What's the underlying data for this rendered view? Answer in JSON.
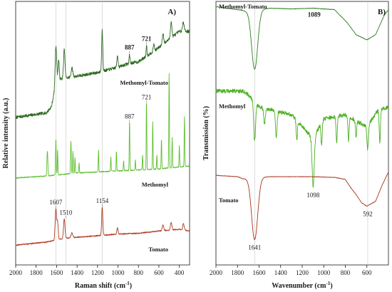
{
  "chart_data": [
    {
      "panel": "A)",
      "type": "line",
      "xlabel": "Raman shift (cm",
      "xlabel_sup": "-1",
      "ylabel": "Relative intensity (a.u.)",
      "xlim": [
        2000,
        300
      ],
      "xticks": [
        2000,
        1800,
        1600,
        1400,
        1200,
        1000,
        800,
        600,
        400
      ],
      "guide_lines": [
        1607,
        1510,
        1154
      ],
      "series": [
        {
          "name": "Methomyl-Tomato",
          "color": "#2e6b22",
          "offset": 0.56,
          "amp": 0.34,
          "baseline": {
            "x": [
              2000,
              1700,
              1650,
              1600,
              1400,
              1200,
              1000,
              900,
              800,
              600,
              400,
              300
            ],
            "y": [
              0.0,
              0.05,
              0.12,
              0.42,
              0.46,
              0.5,
              0.56,
              0.6,
              0.62,
              0.78,
              0.96,
              0.96
            ]
          },
          "peaks": [
            [
              1607,
              0.42,
              10
            ],
            [
              1580,
              0.22,
              8
            ],
            [
              1525,
              0.32,
              10
            ],
            [
              1450,
              0.1,
              12
            ],
            [
              1154,
              0.46,
              8
            ],
            [
              1005,
              0.14,
              8
            ],
            [
              887,
              0.1,
              6
            ],
            [
              721,
              0.12,
              6
            ],
            [
              650,
              0.08,
              8
            ],
            [
              560,
              0.12,
              10
            ],
            [
              480,
              0.18,
              10
            ],
            [
              360,
              0.1,
              12
            ]
          ],
          "noise": 0.035
        },
        {
          "name": "Methomyl",
          "color": "#5cbf2e",
          "offset": 0.33,
          "amp": 0.38,
          "baseline": {
            "x": [
              2000,
              1700,
              1400,
              1000,
              600,
              300
            ],
            "y": [
              0.0,
              0.02,
              0.05,
              0.07,
              0.09,
              0.12
            ]
          },
          "peaks": [
            [
              1690,
              0.25,
              6
            ],
            [
              1607,
              0.36,
              5
            ],
            [
              1590,
              0.25,
              4
            ],
            [
              1460,
              0.32,
              5
            ],
            [
              1440,
              0.22,
              4
            ],
            [
              1420,
              0.16,
              4
            ],
            [
              1380,
              0.1,
              4
            ],
            [
              1190,
              0.22,
              4
            ],
            [
              1070,
              0.14,
              4
            ],
            [
              1015,
              0.2,
              4
            ],
            [
              945,
              0.1,
              4
            ],
            [
              887,
              0.5,
              4
            ],
            [
              830,
              0.1,
              4
            ],
            [
              760,
              0.15,
              4
            ],
            [
              721,
              0.7,
              4
            ],
            [
              660,
              0.48,
              4
            ],
            [
              620,
              0.14,
              4
            ],
            [
              575,
              0.3,
              4
            ],
            [
              500,
              0.95,
              4
            ],
            [
              470,
              0.3,
              4
            ],
            [
              400,
              0.22,
              4
            ],
            [
              350,
              0.5,
              4
            ]
          ],
          "noise": 0.01
        },
        {
          "name": "Tomato",
          "color": "#b03c22",
          "offset": 0.075,
          "amp": 0.3,
          "baseline": {
            "x": [
              2000,
              1700,
              1500,
              1300,
              1000,
              800,
              600,
              400,
              300
            ],
            "y": [
              0.0,
              0.04,
              0.09,
              0.11,
              0.14,
              0.15,
              0.18,
              0.2,
              0.18
            ]
          },
          "peaks": [
            [
              1607,
              0.4,
              10
            ],
            [
              1590,
              0.22,
              8
            ],
            [
              1525,
              0.25,
              10
            ],
            [
              1450,
              0.06,
              12
            ],
            [
              1154,
              0.36,
              8
            ],
            [
              1005,
              0.08,
              8
            ],
            [
              560,
              0.07,
              10
            ],
            [
              480,
              0.1,
              10
            ],
            [
              360,
              0.08,
              10
            ]
          ],
          "noise": 0.015
        }
      ],
      "annotations": [
        {
          "text": "887",
          "x": 887,
          "series": 0,
          "bold": true
        },
        {
          "text": "721",
          "x": 721,
          "series": 0,
          "bold": true
        },
        {
          "text": "887",
          "x": 887,
          "series": 1,
          "bold": false
        },
        {
          "text": "721",
          "x": 721,
          "series": 1,
          "bold": false
        },
        {
          "text": "1607",
          "x": 1607,
          "series": 2,
          "bold": false
        },
        {
          "text": "1510",
          "x": 1510,
          "series": 2,
          "bold": false
        },
        {
          "text": "1154",
          "x": 1154,
          "series": 2,
          "bold": false
        }
      ]
    },
    {
      "panel": "B)",
      "type": "line",
      "xlabel": "Wavenumber (cm",
      "xlabel_sup": "-1",
      "ylabel": "Transmission (%)",
      "xlim": [
        2000,
        400
      ],
      "xticks": [
        2000,
        1800,
        1600,
        1400,
        1200,
        1000,
        800,
        600
      ],
      "guide_lines": [
        1641,
        592
      ],
      "series": [
        {
          "name": "Methomyl-Tomato",
          "color": "#2e7d22",
          "offset": 0.7,
          "amp": 0.28,
          "baseline": {
            "x": [
              2000,
              1900,
              1800,
              1720,
              1500,
              1300,
              1100,
              900,
              780,
              700,
              600,
              520,
              440,
              400
            ],
            "y": [
              1.0,
              0.98,
              0.96,
              0.94,
              0.98,
              0.97,
              0.98,
              0.96,
              0.78,
              0.62,
              0.55,
              0.62,
              0.88,
              0.96
            ]
          },
          "dips": [
            [
              1641,
              0.8,
              40
            ]
          ],
          "noise": 0.006
        },
        {
          "name": "Methomyl",
          "color": "#4caf22",
          "offset": 0.36,
          "amp": 0.3,
          "baseline": {
            "x": [
              2000,
              1750,
              1700,
              1600,
              1300,
              1200,
              1100,
              1000,
              800,
              600,
              500,
              400
            ],
            "y": [
              1.0,
              1.0,
              0.95,
              0.8,
              0.7,
              0.55,
              0.4,
              0.65,
              0.7,
              0.55,
              0.75,
              0.8
            ]
          },
          "dips": [
            [
              1641,
              0.5,
              12
            ],
            [
              1550,
              0.2,
              10
            ],
            [
              1440,
              0.35,
              10
            ],
            [
              1250,
              0.25,
              8
            ],
            [
              1098,
              0.6,
              14
            ],
            [
              1020,
              0.3,
              8
            ],
            [
              880,
              0.35,
              8
            ],
            [
              770,
              0.3,
              8
            ],
            [
              700,
              0.2,
              8
            ],
            [
              592,
              0.3,
              10
            ],
            [
              480,
              0.4,
              8
            ]
          ],
          "noise": 0.05
        },
        {
          "name": "Tomato",
          "color": "#a8341c",
          "offset": 0.08,
          "amp": 0.26,
          "baseline": {
            "x": [
              2000,
              1800,
              1750,
              1500,
              1300,
              1100,
              900,
              800,
              750,
              700,
              650,
              600,
              520,
              460,
              400
            ],
            "y": [
              1.0,
              0.98,
              0.95,
              0.98,
              0.98,
              0.98,
              0.97,
              0.94,
              0.82,
              0.72,
              0.6,
              0.55,
              0.62,
              0.85,
              1.05
            ]
          },
          "dips": [
            [
              1641,
              0.9,
              40
            ]
          ],
          "noise": 0.006
        }
      ],
      "annotations": [
        {
          "text": "1089",
          "x": 1089,
          "series": 0,
          "bold": true
        },
        {
          "text": "1098",
          "x": 1098,
          "series": 1,
          "bold": false
        },
        {
          "text": "1641",
          "x": 1641,
          "series": 2,
          "bold": false
        },
        {
          "text": "592",
          "x": 592,
          "series": 2,
          "bold": false
        }
      ]
    }
  ]
}
